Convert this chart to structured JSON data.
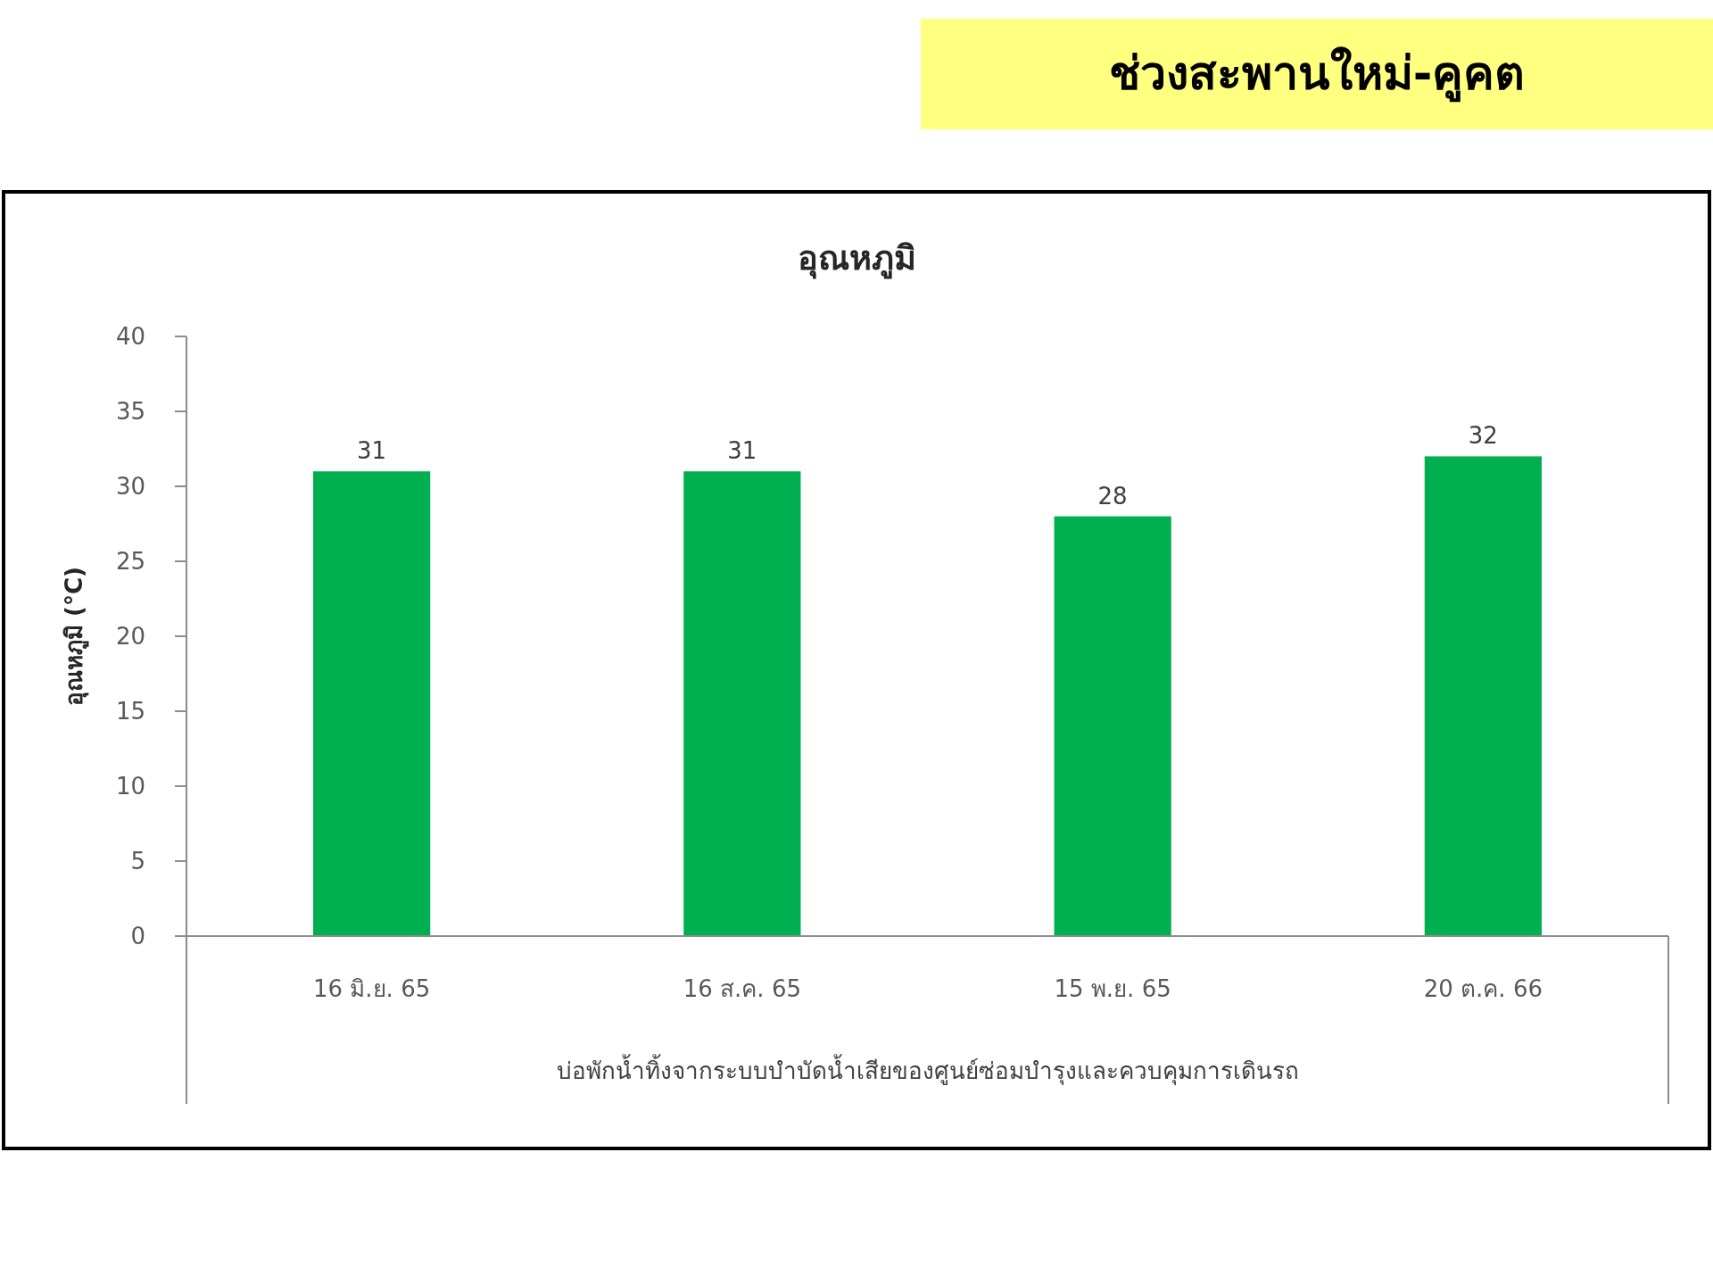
{
  "chart_data": {
    "type": "bar",
    "title": "ช่วงสะพานใหม่-คูคต",
    "subtitle": "อุณหภูมิ",
    "xlabel": "บ่อพักน้ำทิ้งจากระบบบำบัดน้ำเสียของศูนย์ซ่อมบำรุงและควบคุมการเดินรถ",
    "ylabel": "อุณหภูมิ (°C)",
    "categories": [
      "16 มิ.ย. 65",
      "16 ส.ค. 65",
      "15 พ.ย. 65",
      "20 ต.ค. 66"
    ],
    "values": [
      31,
      31,
      28,
      32
    ],
    "color": "#00b050",
    "data_labels": true,
    "ylim": [
      0,
      40
    ],
    "yticks": [
      0,
      5,
      10,
      15,
      20,
      25,
      30,
      35,
      40
    ]
  }
}
